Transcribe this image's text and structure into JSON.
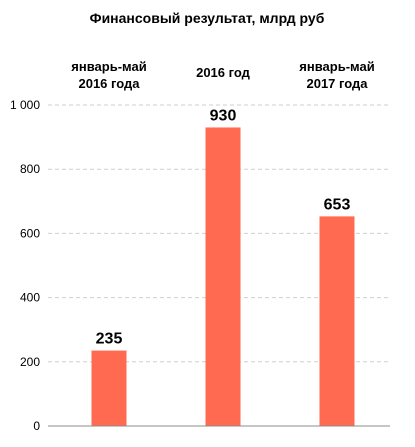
{
  "chart_data": {
    "type": "bar",
    "title": "Финансовый результат, млрд руб",
    "categories": [
      [
        "январь-май",
        "2016 года"
      ],
      [
        "2016 год"
      ],
      [
        "январь-май",
        "2017 года"
      ]
    ],
    "values": [
      235,
      930,
      653
    ],
    "data_labels": [
      "235",
      "930",
      "653"
    ],
    "ylim": [
      0,
      1000
    ],
    "yticks": [
      0,
      200,
      400,
      600,
      800,
      1000
    ],
    "ytick_labels": [
      "0",
      "200",
      "400",
      "600",
      "800",
      "1 000"
    ],
    "grid": true,
    "bar_color": "#ff6a50"
  }
}
